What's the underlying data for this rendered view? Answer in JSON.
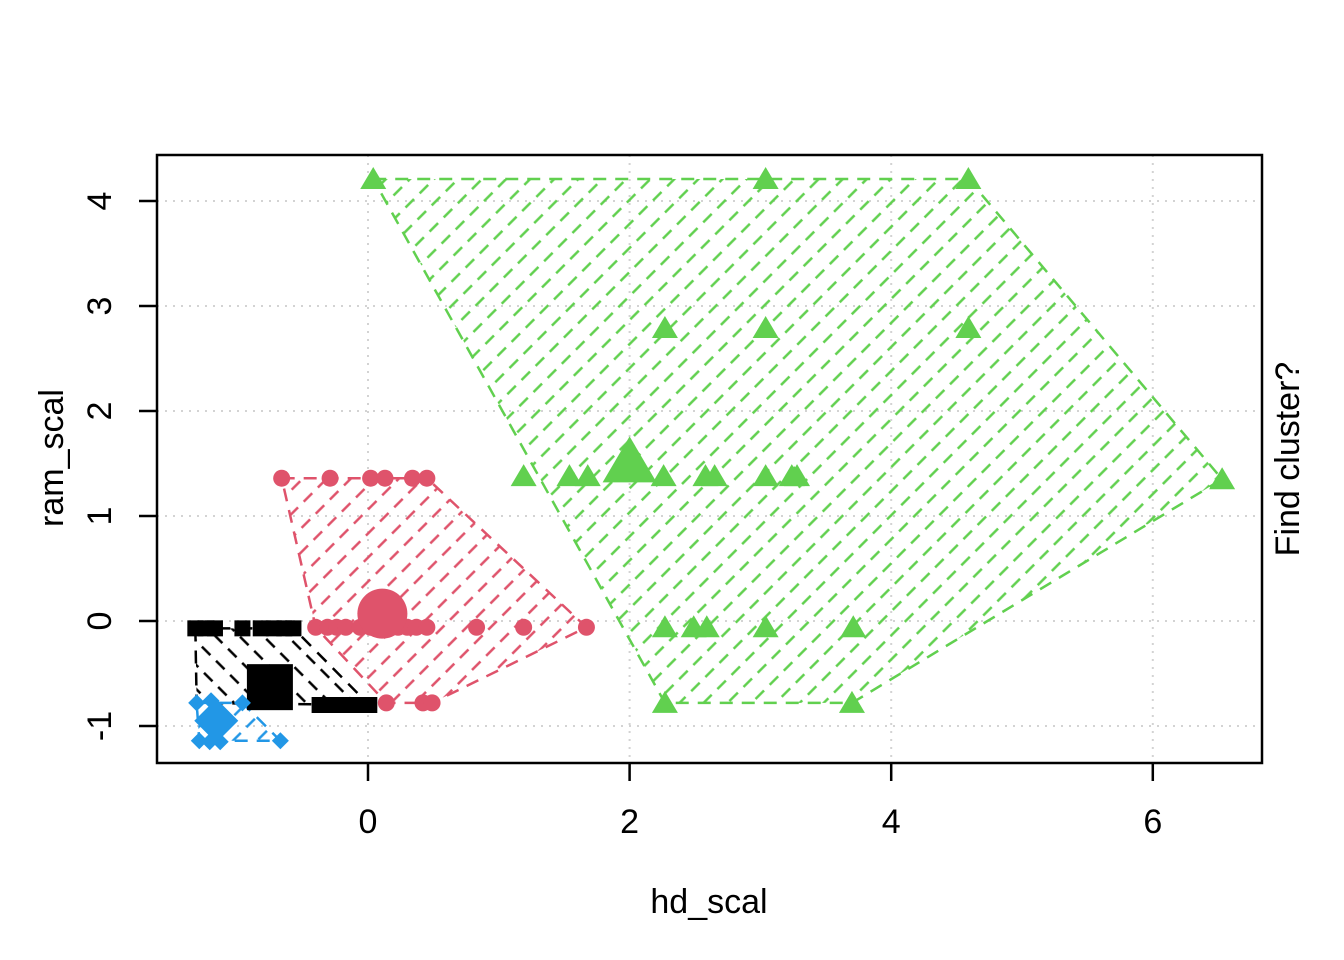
{
  "chart_data": {
    "type": "scatter",
    "title": "",
    "xlabel": "hd_scal",
    "ylabel": "ram_scal",
    "right_label": "Find cluster?",
    "x_ticks": [
      "0",
      "2",
      "4",
      "6"
    ],
    "x_tick_values": [
      0,
      2,
      4,
      6
    ],
    "y_ticks": [
      "-1",
      "0",
      "1",
      "2",
      "3",
      "4"
    ],
    "y_tick_values": [
      -1,
      0,
      1,
      2,
      3,
      4
    ],
    "xlim": [
      -1.61,
      6.84
    ],
    "ylim": [
      -1.35,
      4.44
    ],
    "grid": true,
    "grid_color": "#D3D3D3",
    "legend_position": "none",
    "clusters": [
      {
        "name": "cluster-1-black-squares",
        "symbol": "square",
        "color": "#000000",
        "hatch_angle": 45,
        "points": [
          [
            -1.32,
            -0.07
          ],
          [
            -1.24,
            -0.07
          ],
          [
            -1.17,
            -0.07
          ],
          [
            -0.96,
            -0.07
          ],
          [
            -0.82,
            -0.07
          ],
          [
            -0.72,
            -0.07
          ],
          [
            -0.64,
            -0.07
          ],
          [
            -0.57,
            -0.07
          ],
          [
            -0.37,
            -0.8
          ],
          [
            -0.28,
            -0.8
          ],
          [
            -0.2,
            -0.8
          ],
          [
            -0.11,
            -0.8
          ],
          [
            0.01,
            -0.8
          ]
        ],
        "medoid": [
          -0.75,
          -0.63
        ],
        "hull": [
          [
            -1.32,
            -0.07
          ],
          [
            -0.57,
            -0.07
          ],
          [
            0.01,
            -0.8
          ],
          [
            -1.31,
            -0.78
          ]
        ]
      },
      {
        "name": "cluster-2-red-circles",
        "symbol": "circle",
        "color": "#DF536B",
        "hatch_angle": -45,
        "points": [
          [
            -0.66,
            1.36
          ],
          [
            -0.29,
            1.36
          ],
          [
            0.02,
            1.36
          ],
          [
            0.13,
            1.36
          ],
          [
            0.34,
            1.36
          ],
          [
            0.45,
            1.36
          ],
          [
            -0.4,
            -0.06
          ],
          [
            -0.31,
            -0.06
          ],
          [
            -0.24,
            -0.06
          ],
          [
            -0.17,
            -0.06
          ],
          [
            -0.06,
            -0.06
          ],
          [
            0.02,
            -0.06
          ],
          [
            0.13,
            -0.06
          ],
          [
            0.23,
            -0.06
          ],
          [
            0.3,
            -0.06
          ],
          [
            0.37,
            -0.06
          ],
          [
            0.45,
            -0.06
          ],
          [
            0.83,
            -0.06
          ],
          [
            1.19,
            -0.06
          ],
          [
            1.67,
            -0.06
          ],
          [
            0.14,
            -0.78
          ],
          [
            0.42,
            -0.78
          ],
          [
            0.49,
            -0.78
          ]
        ],
        "medoid": [
          0.11,
          0.07
        ],
        "hull": [
          [
            -0.66,
            1.36
          ],
          [
            0.45,
            1.36
          ],
          [
            1.67,
            -0.06
          ],
          [
            0.49,
            -0.78
          ],
          [
            0.14,
            -0.78
          ],
          [
            -0.4,
            -0.06
          ]
        ]
      },
      {
        "name": "cluster-3-green-triangles",
        "symbol": "triangle",
        "color": "#61D04F",
        "hatch_angle": -45,
        "points": [
          [
            0.04,
            4.21
          ],
          [
            3.04,
            4.21
          ],
          [
            4.59,
            4.21
          ],
          [
            2.27,
            2.79
          ],
          [
            3.04,
            2.79
          ],
          [
            4.59,
            2.79
          ],
          [
            1.19,
            1.38
          ],
          [
            1.54,
            1.38
          ],
          [
            1.68,
            1.38
          ],
          [
            2.26,
            1.38
          ],
          [
            2.58,
            1.38
          ],
          [
            2.65,
            1.38
          ],
          [
            3.04,
            1.38
          ],
          [
            3.24,
            1.38
          ],
          [
            3.28,
            1.38
          ],
          [
            6.53,
            1.35
          ],
          [
            2.27,
            -0.06
          ],
          [
            2.49,
            -0.06
          ],
          [
            2.59,
            -0.06
          ],
          [
            3.04,
            -0.06
          ],
          [
            3.71,
            -0.06
          ],
          [
            2.27,
            -0.78
          ],
          [
            3.7,
            -0.78
          ]
        ],
        "medoid": [
          2.0,
          1.52
        ],
        "hull": [
          [
            0.04,
            4.21
          ],
          [
            4.59,
            4.21
          ],
          [
            6.53,
            1.35
          ],
          [
            3.7,
            -0.78
          ],
          [
            2.27,
            -0.78
          ]
        ]
      },
      {
        "name": "cluster-4-blue-diamonds",
        "symbol": "diamond",
        "color": "#2297E6",
        "hatch_angle": -45,
        "points": [
          [
            -1.31,
            -0.78
          ],
          [
            -1.2,
            -0.76
          ],
          [
            -0.96,
            -0.78
          ],
          [
            -1.29,
            -1.14
          ],
          [
            -1.21,
            -1.15
          ],
          [
            -1.13,
            -1.15
          ],
          [
            -0.67,
            -1.14
          ]
        ],
        "medoid": [
          -1.16,
          -0.95
        ],
        "hull": [
          [
            -1.31,
            -0.78
          ],
          [
            -0.96,
            -0.78
          ],
          [
            -0.67,
            -1.14
          ],
          [
            -1.29,
            -1.14
          ]
        ]
      }
    ]
  }
}
